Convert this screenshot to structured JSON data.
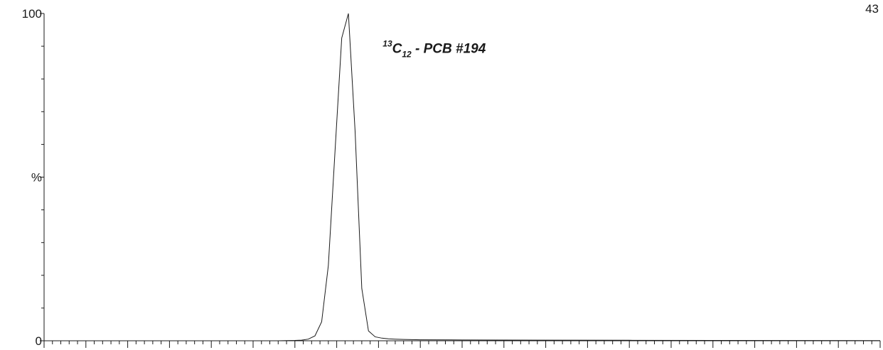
{
  "chart_data": {
    "type": "line",
    "corner_label": "43",
    "ylabel": "%",
    "y_tick_labels": [
      {
        "value": 100,
        "label": "100"
      },
      {
        "value": 50,
        "label": "%"
      },
      {
        "value": 0,
        "label": "0"
      }
    ],
    "ylim": [
      0,
      100
    ],
    "xlim": [
      0,
      100
    ],
    "grid": false,
    "annotation": {
      "sup": "13",
      "base": "C",
      "sub": "12",
      "rest": " - PCB #194",
      "x": 40.5,
      "y": 88
    },
    "series": [
      {
        "x": [
          0,
          28.0,
          29.0,
          30.0,
          30.8,
          31.6,
          32.4,
          33.2,
          34.0,
          34.8,
          35.6,
          36.4,
          37.2,
          38.0,
          38.8,
          39.6,
          40.4,
          41.2,
          42.0,
          43.0,
          45.0,
          50.0,
          60.0,
          70.0,
          80.0,
          90.0,
          100.0
        ],
        "y": [
          0,
          0,
          0.05,
          0.1,
          0.2,
          0.5,
          1.5,
          5.8,
          23,
          58,
          92.5,
          100,
          64,
          16,
          3,
          1.2,
          0.8,
          0.6,
          0.5,
          0.4,
          0.3,
          0.25,
          0.2,
          0.15,
          0.1,
          0.08,
          0.05
        ]
      }
    ]
  }
}
